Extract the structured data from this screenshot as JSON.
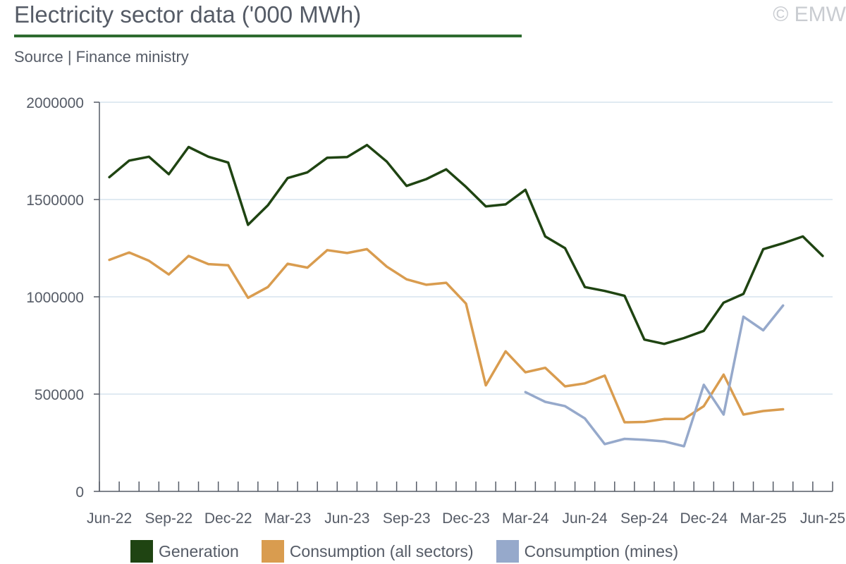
{
  "header": {
    "title": "Electricity sector data ('000 MWh)",
    "subtitle": "Source | Finance ministry",
    "copyright": "© EMW"
  },
  "colors": {
    "accent_rule": "#2e6b2f",
    "generation": "#1f4412",
    "consumption_all": "#d99c4f",
    "consumption_mines": "#96a9cb",
    "grid": "#d5e3ee",
    "axis": "#555b66"
  },
  "chart_data": {
    "type": "line",
    "title": "Electricity sector data ('000 MWh)",
    "ylim": [
      0,
      2000000
    ],
    "yticks": [
      0,
      500000,
      1000000,
      1500000,
      2000000
    ],
    "ytick_labels": [
      "0",
      "500000",
      "1000000",
      "1500000",
      "2000000"
    ],
    "grid": true,
    "legend_position": "bottom",
    "x": [
      "Jun-22",
      "Jul-22",
      "Aug-22",
      "Sep-22",
      "Oct-22",
      "Nov-22",
      "Dec-22",
      "Jan-23",
      "Feb-23",
      "Mar-23",
      "Apr-23",
      "May-23",
      "Jun-23",
      "Jul-23",
      "Aug-23",
      "Sep-23",
      "Oct-23",
      "Nov-23",
      "Dec-23",
      "Jan-24",
      "Feb-24",
      "Mar-24",
      "Apr-24",
      "May-24",
      "Jun-24",
      "Jul-24",
      "Aug-24",
      "Sep-24",
      "Oct-24",
      "Nov-24",
      "Dec-24",
      "Jan-25",
      "Feb-25",
      "Mar-25",
      "Apr-25",
      "May-25",
      "Jun-25"
    ],
    "xtick_labels": [
      "Jun-22",
      "Sep-22",
      "Dec-22",
      "Mar-23",
      "Jun-23",
      "Sep-23",
      "Dec-23",
      "Mar-24",
      "Jun-24",
      "Sep-24",
      "Dec-24",
      "Mar-25",
      "Jun-25"
    ],
    "series": [
      {
        "name": "Generation",
        "color": "#1f4412",
        "values": [
          1615000,
          1700000,
          1720000,
          1630000,
          1770000,
          1720000,
          1690000,
          1370000,
          1470000,
          1610000,
          1640000,
          1715000,
          1718000,
          1780000,
          1695000,
          1570000,
          1605000,
          1655000,
          1565000,
          1465000,
          1475000,
          1550000,
          1310000,
          1250000,
          1050000,
          1030000,
          1005000,
          780000,
          758000,
          788000,
          825000,
          970000,
          1015000,
          1245000,
          1275000,
          1310000,
          1210000
        ]
      },
      {
        "name": "Consumption (all sectors)",
        "color": "#d99c4f",
        "values": [
          1190000,
          1228000,
          1185000,
          1115000,
          1210000,
          1168000,
          1162000,
          995000,
          1050000,
          1170000,
          1150000,
          1240000,
          1225000,
          1245000,
          1155000,
          1090000,
          1062000,
          1072000,
          965000,
          545000,
          720000,
          612000,
          635000,
          540000,
          555000,
          595000,
          355000,
          357000,
          372000,
          372000,
          438000,
          600000,
          395000,
          413000,
          422000,
          null,
          null
        ]
      },
      {
        "name": "Consumption (mines)",
        "color": "#96a9cb",
        "values": [
          null,
          null,
          null,
          null,
          null,
          null,
          null,
          null,
          null,
          null,
          null,
          null,
          null,
          null,
          null,
          null,
          null,
          null,
          null,
          null,
          null,
          510000,
          460000,
          438000,
          375000,
          243000,
          270000,
          265000,
          257000,
          232000,
          548000,
          395000,
          898000,
          828000,
          955000,
          null,
          null
        ]
      }
    ]
  }
}
